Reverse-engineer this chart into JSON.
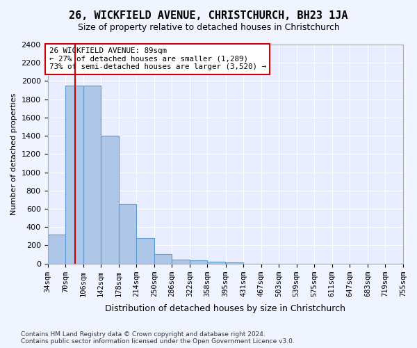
{
  "title": "26, WICKFIELD AVENUE, CHRISTCHURCH, BH23 1JA",
  "subtitle": "Size of property relative to detached houses in Christchurch",
  "xlabel": "Distribution of detached houses by size in Christchurch",
  "ylabel": "Number of detached properties",
  "bin_labels": [
    "34sqm",
    "70sqm",
    "106sqm",
    "142sqm",
    "178sqm",
    "214sqm",
    "250sqm",
    "286sqm",
    "322sqm",
    "358sqm",
    "395sqm",
    "431sqm",
    "467sqm",
    "503sqm",
    "539sqm",
    "575sqm",
    "611sqm",
    "647sqm",
    "683sqm",
    "719sqm",
    "755sqm"
  ],
  "bar_heights": [
    320,
    1950,
    1950,
    1400,
    650,
    280,
    105,
    45,
    35,
    20,
    10,
    0,
    0,
    0,
    0,
    0,
    0,
    0,
    0,
    0
  ],
  "bar_color": "#aec6e8",
  "bar_edge_color": "#5a9fd4",
  "property_line_x": 89,
  "bin_edges": [
    34,
    70,
    106,
    142,
    178,
    214,
    250,
    286,
    322,
    358,
    395,
    431,
    467,
    503,
    539,
    575,
    611,
    647,
    683,
    719,
    755
  ],
  "annotation_text": "26 WICKFIELD AVENUE: 89sqm\n← 27% of detached houses are smaller (1,289)\n73% of semi-detached houses are larger (3,520) →",
  "annotation_box_color": "#ffffff",
  "annotation_box_edge": "#cc0000",
  "vline_color": "#cc0000",
  "ylim": [
    0,
    2400
  ],
  "yticks": [
    0,
    200,
    400,
    600,
    800,
    1000,
    1200,
    1400,
    1600,
    1800,
    2000,
    2200,
    2400
  ],
  "footnote": "Contains HM Land Registry data © Crown copyright and database right 2024.\nContains public sector information licensed under the Open Government Licence v3.0.",
  "bg_color": "#f0f4ff",
  "plot_bg_color": "#e8eeff"
}
